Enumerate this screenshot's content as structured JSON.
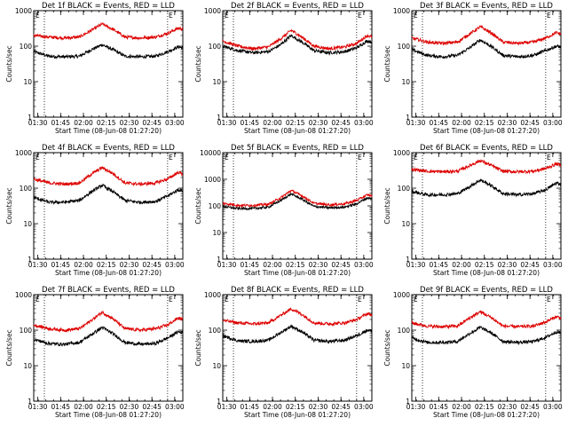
{
  "figure": {
    "x_tick_labels": [
      "01:30",
      "01:45",
      "02:00",
      "02:15",
      "02:30",
      "02:45",
      "03:00"
    ],
    "y_tick_labels": [
      "1",
      "10",
      "100",
      "1000"
    ],
    "xlabel": "Start Time (08-Jun-08 01:27:20)",
    "ylabel": "Counts/sec",
    "marker_labels": [
      "E",
      "E"
    ]
  },
  "chart_data": [
    {
      "type": "line",
      "title": "Det 1f BLACK = Events, RED = LLD",
      "xlabel": "Start Time (08-Jun-08 01:27:20)",
      "ylabel": "Counts/sec",
      "x_range_min_after_start": [
        0,
        98
      ],
      "ylim": [
        1,
        1000
      ],
      "yscale": "log",
      "x_ticks": [
        "01:30",
        "01:45",
        "02:00",
        "02:15",
        "02:30",
        "02:45",
        "03:00"
      ],
      "vlines_min_after_start": [
        7,
        88
      ],
      "series": [
        {
          "color": "#000000",
          "x": [
            0,
            10,
            20,
            30,
            38,
            45,
            52,
            60,
            70,
            80,
            88,
            95,
            98
          ],
          "y": [
            70,
            52,
            50,
            52,
            80,
            110,
            80,
            52,
            50,
            52,
            70,
            95,
            90
          ]
        },
        {
          "color": "#dd0000",
          "x": [
            0,
            10,
            20,
            30,
            38,
            45,
            52,
            60,
            70,
            80,
            88,
            95,
            98
          ],
          "y": [
            200,
            180,
            170,
            180,
            280,
            420,
            300,
            180,
            170,
            180,
            230,
            320,
            300
          ]
        }
      ]
    },
    {
      "type": "line",
      "title": "Det 2f BLACK = Events, RED = LLD",
      "xlabel": "Start Time (08-Jun-08 01:27:20)",
      "ylabel": "Counts/sec",
      "x_range_min_after_start": [
        0,
        98
      ],
      "ylim": [
        1,
        1000
      ],
      "yscale": "log",
      "x_ticks": [
        "01:30",
        "01:45",
        "02:00",
        "02:15",
        "02:30",
        "02:45",
        "03:00"
      ],
      "vlines_min_after_start": [
        7,
        88
      ],
      "series": [
        {
          "color": "#000000",
          "x": [
            0,
            10,
            20,
            30,
            38,
            45,
            52,
            60,
            70,
            80,
            88,
            95,
            98
          ],
          "y": [
            100,
            75,
            65,
            70,
            110,
            200,
            130,
            75,
            65,
            70,
            90,
            140,
            130
          ]
        },
        {
          "color": "#dd0000",
          "x": [
            0,
            10,
            20,
            30,
            38,
            45,
            52,
            60,
            70,
            80,
            88,
            95,
            98
          ],
          "y": [
            140,
            100,
            85,
            95,
            160,
            280,
            180,
            100,
            85,
            95,
            120,
            200,
            180
          ]
        }
      ]
    },
    {
      "type": "line",
      "title": "Det 3f BLACK = Events, RED = LLD",
      "xlabel": "Start Time (08-Jun-08 01:27:20)",
      "ylabel": "Counts/sec",
      "x_range_min_after_start": [
        0,
        98
      ],
      "ylim": [
        1,
        1000
      ],
      "yscale": "log",
      "x_ticks": [
        "01:30",
        "01:45",
        "02:00",
        "02:15",
        "02:30",
        "02:45",
        "03:00"
      ],
      "vlines_min_after_start": [
        7,
        88
      ],
      "series": [
        {
          "color": "#000000",
          "x": [
            0,
            10,
            20,
            30,
            38,
            45,
            52,
            60,
            70,
            80,
            88,
            95,
            98
          ],
          "y": [
            80,
            55,
            50,
            55,
            90,
            150,
            100,
            55,
            50,
            55,
            75,
            100,
            95
          ]
        },
        {
          "color": "#dd0000",
          "x": [
            0,
            10,
            20,
            30,
            38,
            45,
            52,
            60,
            70,
            80,
            88,
            95,
            98
          ],
          "y": [
            170,
            130,
            120,
            130,
            220,
            350,
            240,
            130,
            120,
            130,
            170,
            240,
            220
          ]
        }
      ]
    },
    {
      "type": "line",
      "title": "Det 4f BLACK = Events, RED = LLD",
      "xlabel": "Start Time (08-Jun-08 01:27:20)",
      "ylabel": "Counts/sec",
      "x_range_min_after_start": [
        0,
        98
      ],
      "ylim": [
        1,
        1000
      ],
      "yscale": "log",
      "x_ticks": [
        "01:30",
        "01:45",
        "02:00",
        "02:15",
        "02:30",
        "02:45",
        "03:00"
      ],
      "vlines_min_after_start": [
        7,
        88
      ],
      "series": [
        {
          "color": "#000000",
          "x": [
            0,
            10,
            20,
            30,
            38,
            45,
            52,
            60,
            70,
            80,
            88,
            95,
            98
          ],
          "y": [
            55,
            40,
            40,
            45,
            80,
            120,
            80,
            45,
            40,
            42,
            60,
            90,
            85
          ]
        },
        {
          "color": "#dd0000",
          "x": [
            0,
            10,
            20,
            30,
            38,
            45,
            52,
            60,
            70,
            80,
            88,
            95,
            98
          ],
          "y": [
            180,
            140,
            130,
            140,
            250,
            380,
            260,
            140,
            130,
            140,
            180,
            280,
            250
          ]
        }
      ]
    },
    {
      "type": "line",
      "title": "Det 5f BLACK = Events, RED = LLD",
      "xlabel": "Start Time (08-Jun-08 01:27:20)",
      "ylabel": "Counts/sec",
      "x_range_min_after_start": [
        0,
        98
      ],
      "ylim": [
        1,
        10000
      ],
      "yscale": "log",
      "x_ticks": [
        "01:30",
        "01:45",
        "02:00",
        "02:15",
        "02:30",
        "02:45",
        "03:00"
      ],
      "vlines_min_after_start": [
        7,
        88
      ],
      "series": [
        {
          "color": "#000000",
          "x": [
            0,
            10,
            20,
            30,
            38,
            45,
            52,
            60,
            70,
            80,
            88,
            95,
            98
          ],
          "y": [
            95,
            80,
            80,
            90,
            160,
            280,
            180,
            95,
            85,
            90,
            120,
            200,
            180
          ]
        },
        {
          "color": "#dd0000",
          "x": [
            0,
            10,
            20,
            30,
            38,
            45,
            52,
            60,
            70,
            80,
            88,
            95,
            98
          ],
          "y": [
            125,
            105,
            105,
            115,
            200,
            380,
            240,
            125,
            110,
            120,
            160,
            260,
            240
          ]
        }
      ]
    },
    {
      "type": "line",
      "title": "Det 6f BLACK = Events, RED = LLD",
      "xlabel": "Start Time (08-Jun-08 01:27:20)",
      "ylabel": "Counts/sec",
      "x_range_min_after_start": [
        0,
        98
      ],
      "ylim": [
        1,
        1000
      ],
      "yscale": "log",
      "x_ticks": [
        "01:30",
        "01:45",
        "02:00",
        "02:15",
        "02:30",
        "02:45",
        "03:00"
      ],
      "vlines_min_after_start": [
        7,
        88
      ],
      "series": [
        {
          "color": "#000000",
          "x": [
            0,
            10,
            20,
            30,
            38,
            45,
            52,
            60,
            70,
            80,
            88,
            95,
            98
          ],
          "y": [
            80,
            65,
            65,
            70,
            110,
            170,
            120,
            70,
            65,
            70,
            90,
            140,
            130
          ]
        },
        {
          "color": "#dd0000",
          "x": [
            0,
            10,
            20,
            30,
            38,
            45,
            52,
            60,
            70,
            80,
            88,
            95,
            98
          ],
          "y": [
            340,
            300,
            290,
            300,
            430,
            600,
            440,
            300,
            290,
            300,
            360,
            480,
            450
          ]
        }
      ]
    },
    {
      "type": "line",
      "title": "Det 7f BLACK = Events, RED = LLD",
      "xlabel": "Start Time (08-Jun-08 01:27:20)",
      "ylabel": "Counts/sec",
      "x_range_min_after_start": [
        0,
        98
      ],
      "ylim": [
        1,
        1000
      ],
      "yscale": "log",
      "x_ticks": [
        "01:30",
        "01:45",
        "02:00",
        "02:15",
        "02:30",
        "02:45",
        "03:00"
      ],
      "vlines_min_after_start": [
        7,
        88
      ],
      "series": [
        {
          "color": "#000000",
          "x": [
            0,
            10,
            20,
            30,
            38,
            45,
            52,
            60,
            70,
            80,
            88,
            95,
            98
          ],
          "y": [
            55,
            42,
            40,
            45,
            75,
            120,
            80,
            45,
            40,
            42,
            60,
            90,
            85
          ]
        },
        {
          "color": "#dd0000",
          "x": [
            0,
            10,
            20,
            30,
            38,
            45,
            52,
            60,
            70,
            80,
            88,
            95,
            98
          ],
          "y": [
            140,
            110,
            100,
            110,
            190,
            320,
            210,
            110,
            100,
            110,
            140,
            220,
            200
          ]
        }
      ]
    },
    {
      "type": "line",
      "title": "Det 8f BLACK = Events, RED = LLD",
      "xlabel": "Start Time (08-Jun-08 01:27:20)",
      "ylabel": "Counts/sec",
      "x_range_min_after_start": [
        0,
        98
      ],
      "ylim": [
        1,
        1000
      ],
      "yscale": "log",
      "x_ticks": [
        "01:30",
        "01:45",
        "02:00",
        "02:15",
        "02:30",
        "02:45",
        "03:00"
      ],
      "vlines_min_after_start": [
        7,
        88
      ],
      "series": [
        {
          "color": "#000000",
          "x": [
            0,
            10,
            20,
            30,
            38,
            45,
            52,
            60,
            70,
            80,
            88,
            95,
            98
          ],
          "y": [
            70,
            50,
            48,
            52,
            85,
            130,
            90,
            52,
            48,
            52,
            70,
            100,
            95
          ]
        },
        {
          "color": "#dd0000",
          "x": [
            0,
            10,
            20,
            30,
            38,
            45,
            52,
            60,
            70,
            80,
            88,
            95,
            98
          ],
          "y": [
            190,
            160,
            150,
            160,
            260,
            400,
            280,
            160,
            150,
            160,
            200,
            290,
            270
          ]
        }
      ]
    },
    {
      "type": "line",
      "title": "Det 9f BLACK = Events, RED = LLD",
      "xlabel": "Start Time (08-Jun-08 01:27:20)",
      "ylabel": "Counts/sec",
      "x_range_min_after_start": [
        0,
        98
      ],
      "ylim": [
        1,
        1000
      ],
      "yscale": "log",
      "x_ticks": [
        "01:30",
        "01:45",
        "02:00",
        "02:15",
        "02:30",
        "02:45",
        "03:00"
      ],
      "vlines_min_after_start": [
        7,
        88
      ],
      "series": [
        {
          "color": "#000000",
          "x": [
            0,
            10,
            20,
            30,
            38,
            45,
            52,
            60,
            70,
            80,
            88,
            95,
            98
          ],
          "y": [
            60,
            45,
            45,
            48,
            80,
            120,
            85,
            48,
            45,
            48,
            62,
            90,
            85
          ]
        },
        {
          "color": "#dd0000",
          "x": [
            0,
            10,
            20,
            30,
            38,
            45,
            52,
            60,
            70,
            80,
            88,
            95,
            98
          ],
          "y": [
            160,
            130,
            125,
            130,
            220,
            330,
            230,
            130,
            125,
            130,
            170,
            240,
            220
          ]
        }
      ]
    }
  ]
}
